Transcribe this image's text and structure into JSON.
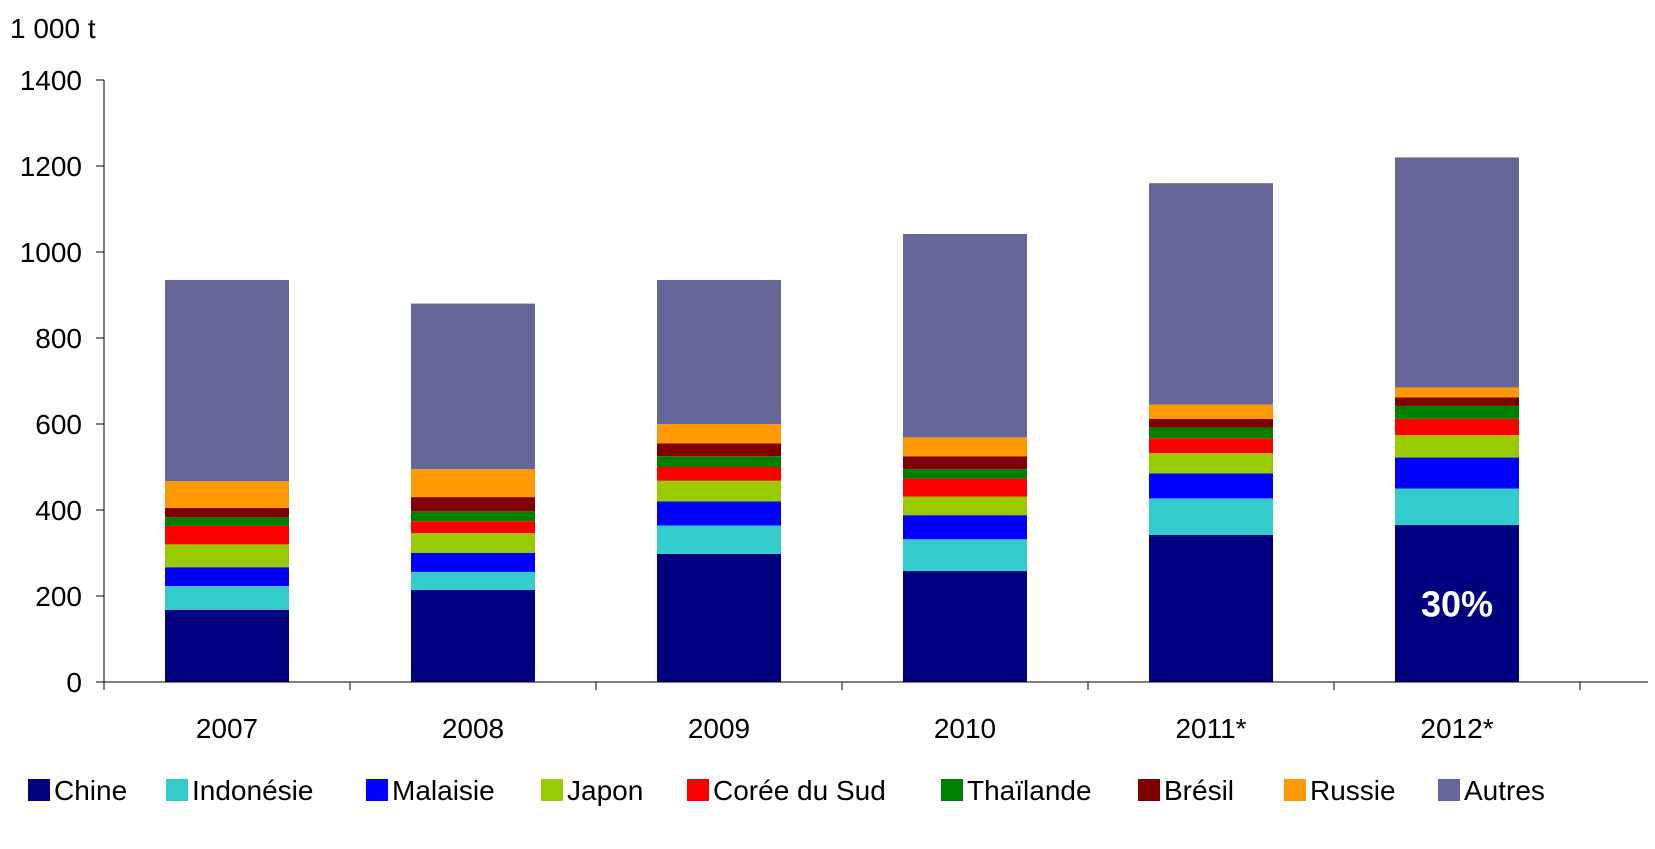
{
  "chart_data": {
    "type": "bar",
    "stacked": true,
    "unit_label": "1 000 t",
    "categories": [
      "2007",
      "2008",
      "2009",
      "2010",
      "2011*",
      "2012*"
    ],
    "ylim": [
      0,
      1400
    ],
    "yticks": [
      "0",
      "200",
      "400",
      "600",
      "800",
      "1000",
      "1200",
      "1400"
    ],
    "grid": false,
    "legend_position": "bottom",
    "series": [
      {
        "name": "Chine",
        "color": "#000080",
        "values": [
          168,
          214,
          298,
          258,
          342,
          365
        ]
      },
      {
        "name": "Indonésie",
        "color": "#33CCCC",
        "values": [
          55,
          42,
          66,
          74,
          85,
          85
        ]
      },
      {
        "name": "Malaisie",
        "color": "#0000FF",
        "values": [
          44,
          44,
          56,
          56,
          58,
          72
        ]
      },
      {
        "name": "Japon",
        "color": "#99CC00",
        "values": [
          53,
          46,
          48,
          43,
          47,
          52
        ]
      },
      {
        "name": "Corée du Sud",
        "color": "#FF0000",
        "values": [
          43,
          28,
          32,
          42,
          35,
          38
        ]
      },
      {
        "name": "Thaïlande",
        "color": "#008000",
        "values": [
          20,
          23,
          25,
          22,
          25,
          30
        ]
      },
      {
        "name": "Brésil",
        "color": "#800000",
        "values": [
          22,
          33,
          30,
          30,
          20,
          20
        ]
      },
      {
        "name": "Russie",
        "color": "#FF9900",
        "values": [
          62,
          65,
          45,
          44,
          33,
          23
        ]
      },
      {
        "name": "Autres",
        "color": "#666699",
        "values": [
          468,
          385,
          335,
          473,
          515,
          535
        ]
      }
    ],
    "annotations": [
      {
        "category": "2012*",
        "series": "Chine",
        "text": "30%"
      }
    ]
  }
}
